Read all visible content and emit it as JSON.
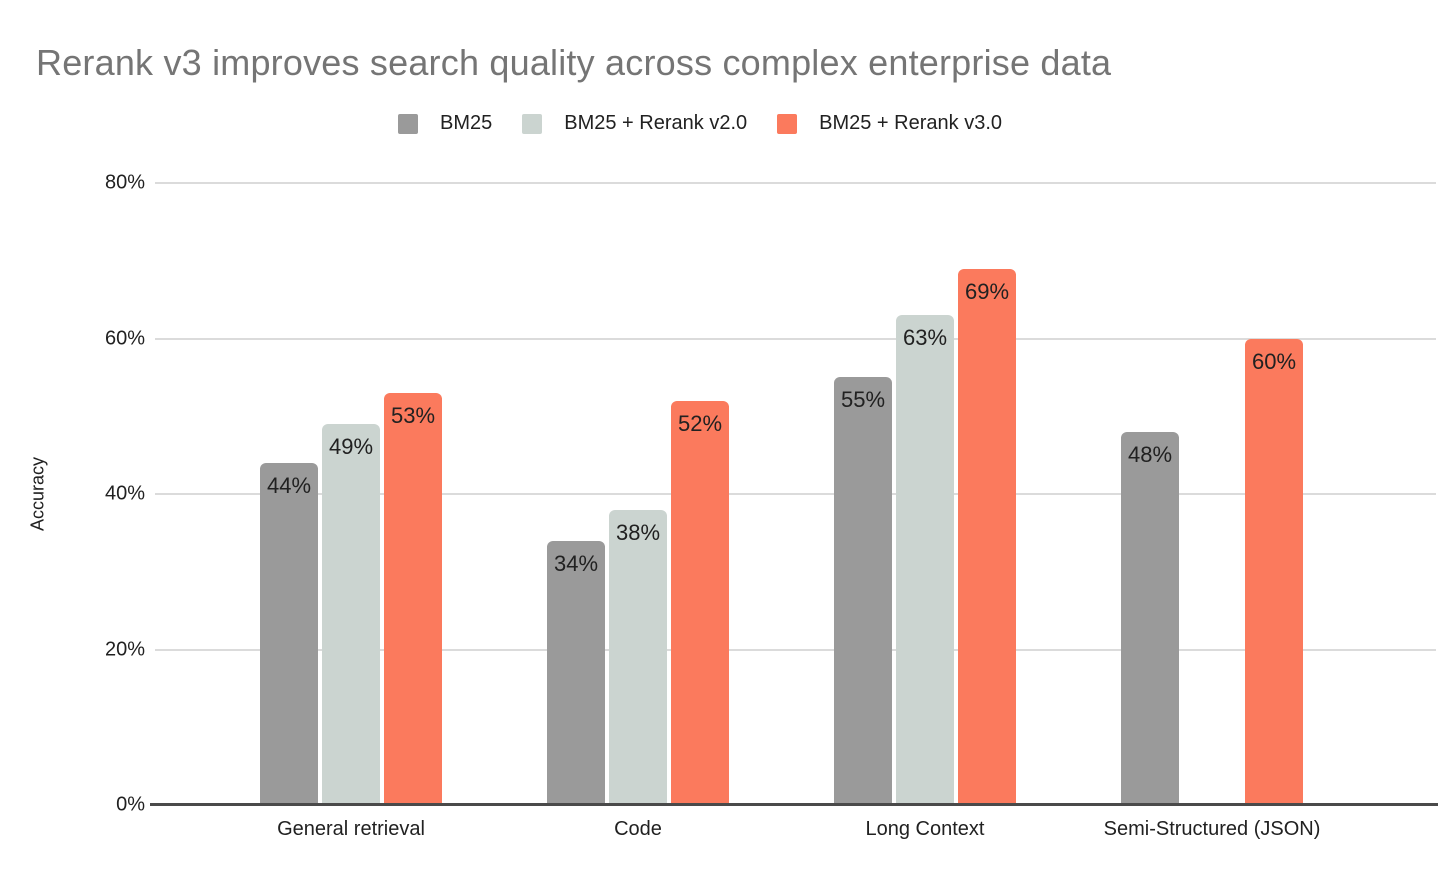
{
  "chart_data": {
    "type": "bar",
    "title": "Rerank v3 improves search quality across complex enterprise data",
    "ylabel": "Accuracy",
    "xlabel": "",
    "categories": [
      "General retrieval",
      "Code",
      "Long Context",
      "Semi-Structured (JSON)"
    ],
    "series": [
      {
        "name": "BM25",
        "color": "#9a9a9a",
        "values": [
          44,
          34,
          55,
          48
        ]
      },
      {
        "name": "BM25 + Rerank v2.0",
        "color": "#cbd4d0",
        "values": [
          49,
          38,
          63,
          null
        ]
      },
      {
        "name": "BM25 + Rerank v3.0",
        "color": "#fb7a5d",
        "values": [
          53,
          52,
          69,
          60
        ]
      }
    ],
    "value_suffix": "%",
    "ylim": [
      0,
      80
    ],
    "yticks": [
      {
        "value": 0,
        "label": "0%"
      },
      {
        "value": 20,
        "label": "20%"
      },
      {
        "value": 40,
        "label": "40%"
      },
      {
        "value": 60,
        "label": "60%"
      },
      {
        "value": 80,
        "label": "80%"
      }
    ],
    "grid": true,
    "legend_position": "top",
    "colors": {
      "title": "#757575",
      "axis_line": "#4a4a4a",
      "gridline": "#dbdbdb",
      "tick_text": "#212121",
      "data_label": "#212121",
      "background": "#ffffff"
    }
  }
}
